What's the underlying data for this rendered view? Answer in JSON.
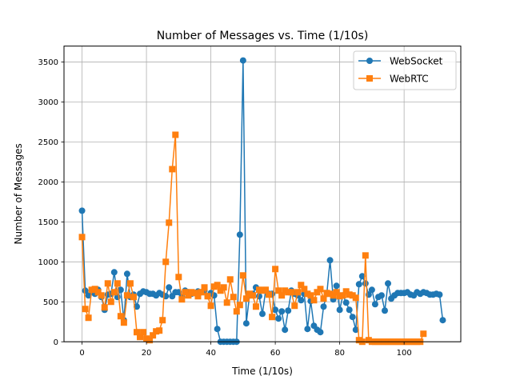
{
  "chart_data": {
    "type": "line",
    "title": "Number of Messages vs. Time (1/10s)",
    "xlabel": "Time (1/10s)",
    "ylabel": "Number of Messages",
    "xlim": [
      -5.6,
      117.6
    ],
    "ylim": [
      0,
      3700
    ],
    "xticks": [
      0,
      20,
      40,
      60,
      80,
      100
    ],
    "yticks": [
      0,
      500,
      1000,
      1500,
      2000,
      2500,
      3000,
      3500
    ],
    "grid": true,
    "legend_position": "top-right",
    "series": [
      {
        "name": "WebSocket",
        "color": "#1f77b4",
        "marker": "circle",
        "x": [
          0,
          1,
          2,
          3,
          4,
          5,
          6,
          7,
          8,
          9,
          10,
          11,
          12,
          13,
          14,
          15,
          16,
          17,
          18,
          19,
          20,
          21,
          22,
          23,
          24,
          25,
          26,
          27,
          28,
          29,
          30,
          31,
          32,
          33,
          34,
          35,
          36,
          37,
          38,
          39,
          40,
          41,
          42,
          43,
          44,
          45,
          46,
          47,
          48,
          49,
          50,
          51,
          52,
          53,
          54,
          55,
          56,
          57,
          58,
          59,
          60,
          61,
          62,
          63,
          64,
          65,
          66,
          67,
          68,
          69,
          70,
          71,
          72,
          73,
          74,
          75,
          76,
          77,
          78,
          79,
          80,
          81,
          82,
          83,
          84,
          85,
          86,
          87,
          88,
          89,
          90,
          91,
          92,
          93,
          94,
          95,
          96,
          97,
          98,
          99,
          100,
          101,
          102,
          103,
          104,
          105,
          106,
          107,
          108,
          109,
          110,
          111,
          112
        ],
        "values": [
          1640,
          640,
          580,
          620,
          600,
          650,
          560,
          400,
          590,
          600,
          870,
          560,
          650,
          270,
          850,
          560,
          590,
          440,
          600,
          630,
          620,
          600,
          600,
          580,
          610,
          590,
          570,
          680,
          570,
          620,
          620,
          560,
          640,
          620,
          600,
          610,
          630,
          620,
          640,
          570,
          610,
          580,
          160,
          0,
          0,
          0,
          0,
          0,
          0,
          1340,
          3520,
          230,
          580,
          600,
          680,
          570,
          350,
          640,
          600,
          600,
          400,
          290,
          380,
          150,
          390,
          640,
          600,
          580,
          520,
          600,
          160,
          510,
          200,
          150,
          120,
          440,
          600,
          1020,
          530,
          700,
          400,
          580,
          490,
          400,
          310,
          150,
          720,
          820,
          730,
          590,
          650,
          470,
          560,
          580,
          390,
          730,
          540,
          580,
          610,
          610,
          610,
          620,
          590,
          580,
          620,
          600,
          620,
          610,
          590,
          590,
          600,
          590,
          270
        ]
      },
      {
        "name": "WebRTC",
        "color": "#ff7f0e",
        "marker": "square",
        "x": [
          0,
          1,
          2,
          3,
          4,
          5,
          6,
          7,
          8,
          9,
          10,
          11,
          12,
          13,
          14,
          15,
          16,
          17,
          18,
          19,
          20,
          21,
          22,
          23,
          24,
          25,
          26,
          27,
          28,
          29,
          30,
          31,
          32,
          33,
          34,
          35,
          36,
          37,
          38,
          39,
          40,
          41,
          42,
          43,
          44,
          45,
          46,
          47,
          48,
          49,
          50,
          51,
          52,
          53,
          54,
          55,
          56,
          57,
          58,
          59,
          60,
          61,
          62,
          63,
          64,
          65,
          66,
          67,
          68,
          69,
          70,
          71,
          72,
          73,
          74,
          75,
          76,
          77,
          78,
          79,
          80,
          81,
          82,
          83,
          84,
          85,
          86,
          87,
          88,
          89,
          90,
          91,
          92,
          93,
          94,
          95,
          96,
          97,
          98,
          99,
          100,
          101,
          102,
          103,
          104,
          105,
          106
        ],
        "values": [
          1310,
          410,
          300,
          650,
          660,
          620,
          580,
          430,
          730,
          500,
          620,
          730,
          320,
          240,
          580,
          730,
          560,
          120,
          60,
          120,
          40,
          20,
          80,
          130,
          140,
          270,
          1000,
          1490,
          2160,
          2590,
          810,
          530,
          620,
          580,
          620,
          610,
          570,
          620,
          680,
          570,
          450,
          690,
          710,
          640,
          680,
          490,
          780,
          560,
          380,
          460,
          830,
          540,
          600,
          580,
          440,
          650,
          640,
          650,
          590,
          310,
          910,
          640,
          580,
          640,
          620,
          620,
          450,
          620,
          710,
          660,
          600,
          580,
          520,
          620,
          660,
          540,
          610,
          600,
          580,
          620,
          570,
          580,
          630,
          590,
          580,
          550,
          20,
          0,
          1080,
          20,
          0,
          0,
          0,
          0,
          0,
          0,
          0,
          0,
          0,
          0,
          0,
          0,
          0,
          0,
          0,
          0,
          100
        ]
      }
    ]
  }
}
